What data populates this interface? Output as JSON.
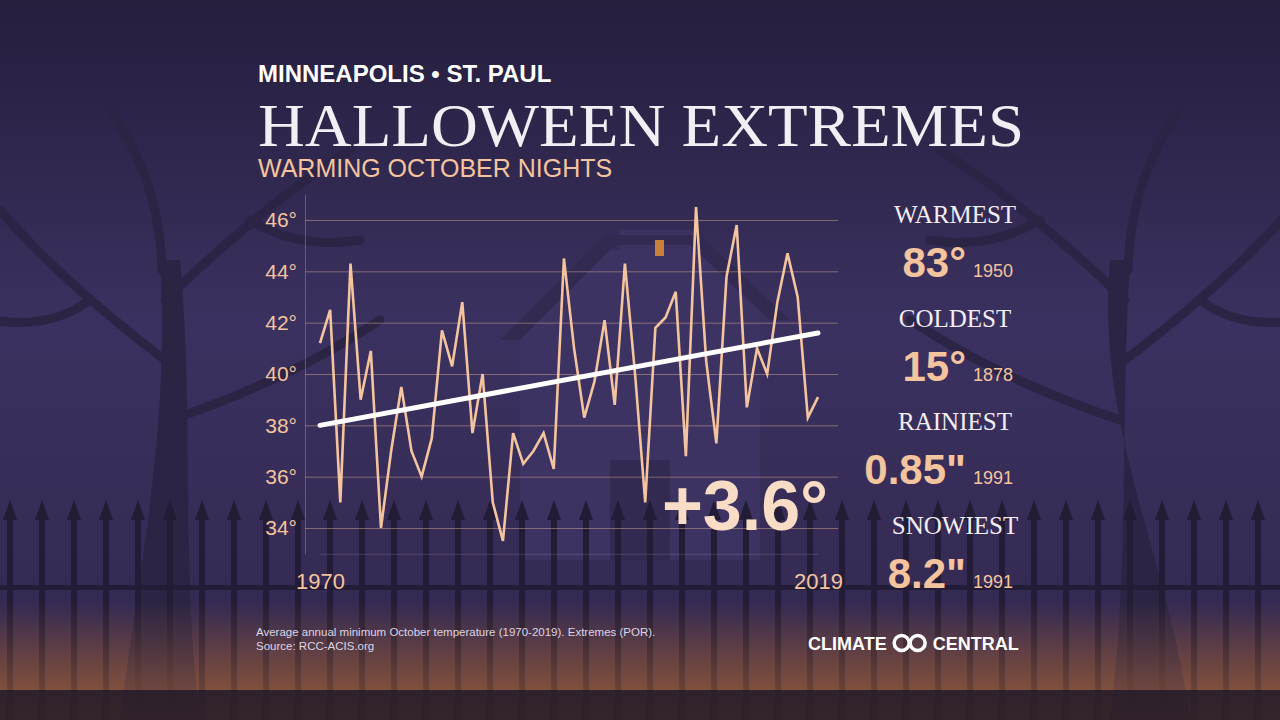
{
  "chart_data": {
    "type": "line",
    "header": "MINNEAPOLIS • ST. PAUL",
    "title": "HALLOWEEN EXTREMES",
    "subtitle": "WARMING OCTOBER NIGHTS",
    "x": [
      1970,
      1971,
      1972,
      1973,
      1974,
      1975,
      1976,
      1977,
      1978,
      1979,
      1980,
      1981,
      1982,
      1983,
      1984,
      1985,
      1986,
      1987,
      1988,
      1989,
      1990,
      1991,
      1992,
      1993,
      1994,
      1995,
      1996,
      1997,
      1998,
      1999,
      2000,
      2001,
      2002,
      2003,
      2004,
      2005,
      2006,
      2007,
      2008,
      2009,
      2010,
      2011,
      2012,
      2013,
      2014,
      2015,
      2016,
      2017,
      2018,
      2019
    ],
    "series": [
      {
        "color": "#f4c49f",
        "values": [
          41.2,
          42.5,
          35.0,
          44.3,
          39.0,
          40.9,
          34.0,
          37.0,
          39.5,
          37.0,
          36.0,
          37.5,
          41.7,
          40.3,
          42.8,
          37.7,
          40.0,
          35.0,
          33.5,
          37.7,
          36.5,
          37.0,
          37.7,
          36.3,
          44.5,
          41.0,
          38.3,
          39.7,
          42.1,
          38.8,
          44.3,
          40.0,
          35.0,
          41.8,
          42.2,
          43.2,
          36.8,
          46.5,
          40.5,
          37.3,
          43.8,
          45.8,
          38.7,
          41.0,
          40.0,
          42.8,
          44.7,
          43.0,
          38.3,
          39.1
        ]
      }
    ],
    "trend": {
      "x": [
        1970,
        2019
      ],
      "values": [
        38.0,
        41.6
      ],
      "color": "#ffffff"
    },
    "annotation": "+3.6°",
    "xlim": [
      1970,
      2019
    ],
    "xticks": [
      1970,
      2019
    ],
    "ylim": [
      33,
      47
    ],
    "yticks": [
      {
        "value": 34,
        "label": "34°"
      },
      {
        "value": 36,
        "label": "36°"
      },
      {
        "value": 38,
        "label": "38°"
      },
      {
        "value": 40,
        "label": "40°"
      },
      {
        "value": 42,
        "label": "42°"
      },
      {
        "value": 44,
        "label": "44°"
      },
      {
        "value": 46,
        "label": "46°"
      }
    ],
    "grid": true,
    "extremes": [
      {
        "label": "WARMEST",
        "value": "83°",
        "year": "1950"
      },
      {
        "label": "COLDEST",
        "value": "15°",
        "year": "1878"
      },
      {
        "label": "RAINIEST",
        "value": "0.85\"",
        "year": "1991"
      },
      {
        "label": "SNOWIEST",
        "value": "8.2\"",
        "year": "1991"
      }
    ],
    "footnote": [
      "Average annual minimum October temperature (1970-2019). Extremes (POR).",
      "Source: RCC-ACIS.org"
    ],
    "logo": [
      "CLIMATE",
      "CENTRAL"
    ]
  }
}
